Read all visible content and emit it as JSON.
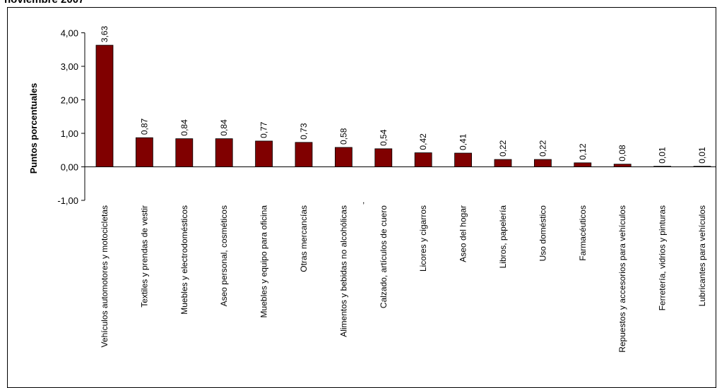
{
  "title": "noviembre 2007",
  "chart_data": {
    "type": "bar",
    "ylabel": "Puntos porcentuales",
    "xlabel": "",
    "ylim": [
      -1,
      4
    ],
    "yticks": [
      "-1,00",
      "0,00",
      "1,00",
      "2,00",
      "3,00",
      "4,00"
    ],
    "yticks_values": [
      -1,
      0,
      1,
      2,
      3,
      4
    ],
    "grid": false,
    "legend": "none",
    "bar_color": "#800000",
    "categories": [
      "Vehículos automotores y motocicletas",
      "Textiles y prendas de vestir",
      "Muebles y electrodomésticos",
      "Aseo personal, cosméticos",
      "Muebles y equipo para oficina",
      "Otras mercancías",
      "Alimentos  y bebidas no alcohólicas",
      "Calzado, artículos de cuero",
      "Licores y cigarros",
      "Aseo del  hogar",
      "Libros, papelería",
      "Uso doméstico",
      "Farmacéuticos",
      "Repuestos y accesorios para vehículos",
      "Ferretería, vidrios y pinturas",
      "Lubricantes para vehículos"
    ],
    "values": [
      3.63,
      0.87,
      0.84,
      0.84,
      0.77,
      0.73,
      0.58,
      0.54,
      0.42,
      0.41,
      0.22,
      0.22,
      0.12,
      0.08,
      0.01,
      0.01
    ],
    "value_labels": [
      "3,63",
      "0,87",
      "0,84",
      "0,84",
      "0,77",
      "0,73",
      "0,58",
      "0,54",
      "0,42",
      "0,41",
      "0,22",
      "0,22",
      "0,12",
      "0,08",
      "0,01",
      "0,01"
    ],
    "annotation": ","
  }
}
